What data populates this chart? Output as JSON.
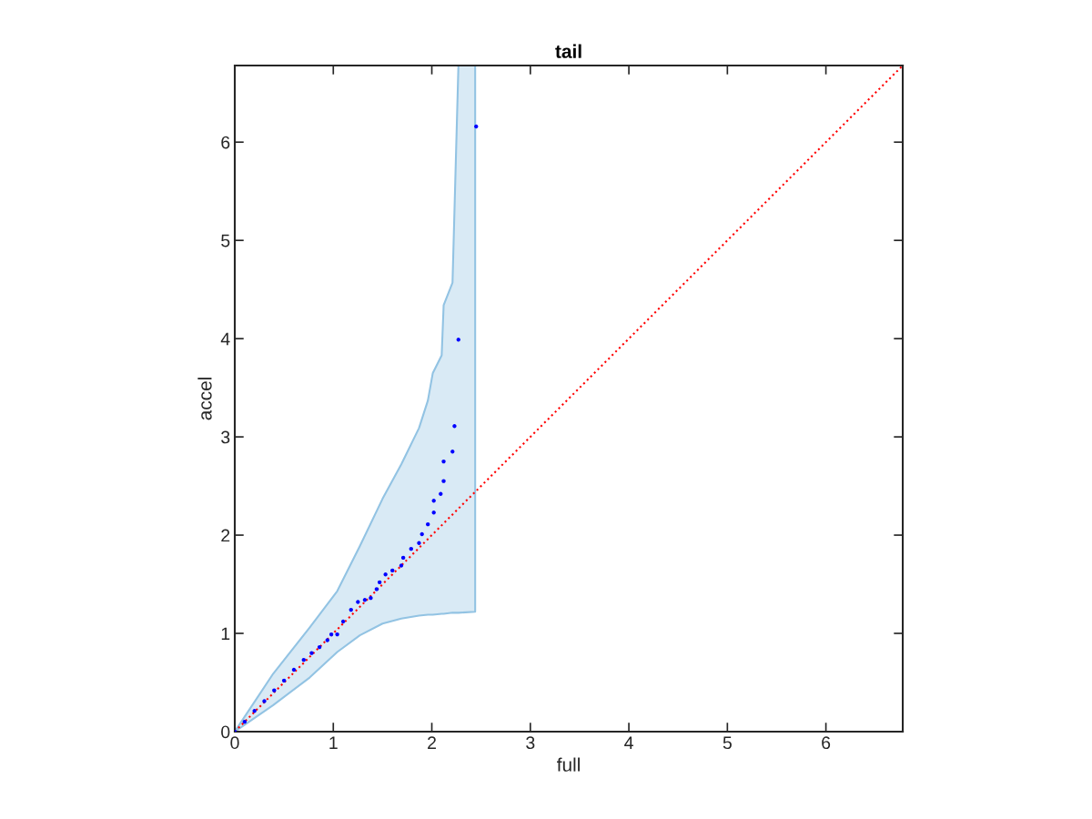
{
  "chart_data": {
    "type": "scatter",
    "title": "tail",
    "xlabel": "full",
    "ylabel": "accel",
    "xlim": [
      0,
      6.78
    ],
    "ylim": [
      0,
      6.78
    ],
    "xticks": [
      0,
      1,
      2,
      3,
      4,
      5,
      6
    ],
    "yticks": [
      0,
      1,
      2,
      3,
      4,
      5,
      6
    ],
    "grid": false,
    "series": [
      {
        "type": "area",
        "color": "#92c3e3",
        "values": [
          null,
          null,
          null,
          null,
          null,
          null,
          null,
          null,
          null,
          null,
          null,
          null,
          null,
          null,
          null
        ],
        "x": [
          0,
          0.39,
          0.76,
          1.04,
          1.27,
          1.5,
          1.69,
          1.87,
          1.96,
          2.01,
          2.1,
          2.12,
          2.21,
          2.27,
          2.44
        ],
        "lower": [
          0,
          0.27,
          0.55,
          0.81,
          0.98,
          1.1,
          1.15,
          1.18,
          1.19,
          1.19,
          1.2,
          1.2,
          1.21,
          1.21,
          1.22
        ],
        "upper": [
          0,
          0.59,
          1.06,
          1.43,
          1.89,
          2.37,
          2.72,
          3.09,
          3.37,
          3.65,
          3.83,
          4.34,
          4.57,
          6.78,
          6.78
        ]
      },
      {
        "type": "line",
        "color": "#ff0000",
        "line_style": "dotted",
        "marker": "none",
        "x": [
          0,
          6.78
        ],
        "values": [
          0,
          6.78
        ]
      },
      {
        "color": "#0000ff",
        "marker": "circle",
        "x": [
          0,
          0.1,
          0.2,
          0.3,
          0.4,
          0.5,
          0.6,
          0.7,
          0.78,
          0.86,
          0.94,
          0.98,
          1.04,
          1.1,
          1.18,
          1.25,
          1.32,
          1.38,
          1.44,
          1.47,
          1.53,
          1.6,
          1.69,
          1.71,
          1.79,
          1.87,
          1.9,
          1.96,
          2.02,
          2.02,
          2.09,
          2.12,
          2.12,
          2.21,
          2.23,
          2.27,
          2.45
        ],
        "values": [
          0,
          0.1,
          0.21,
          0.31,
          0.42,
          0.52,
          0.63,
          0.73,
          0.8,
          0.86,
          0.93,
          0.99,
          0.99,
          1.12,
          1.24,
          1.32,
          1.34,
          1.36,
          1.45,
          1.52,
          1.6,
          1.64,
          1.69,
          1.77,
          1.86,
          1.92,
          2.01,
          2.11,
          2.23,
          2.35,
          2.42,
          2.55,
          2.75,
          2.85,
          3.11,
          3.99,
          6.16
        ]
      }
    ]
  }
}
